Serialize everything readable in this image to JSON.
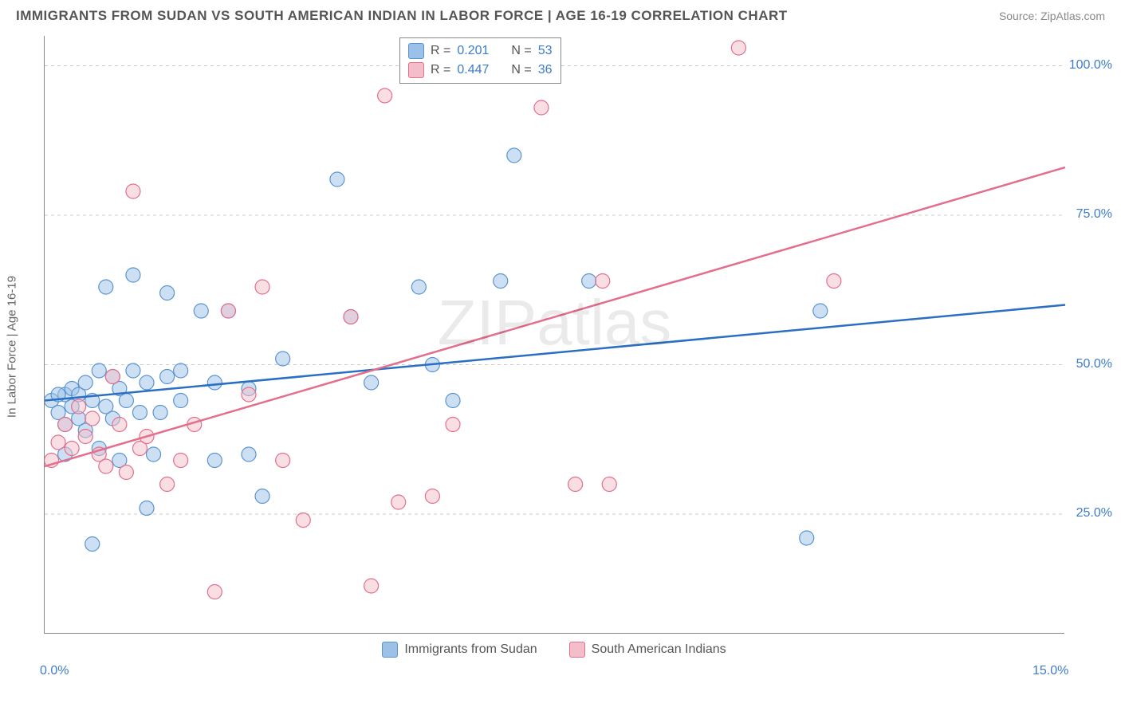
{
  "title": "IMMIGRANTS FROM SUDAN VS SOUTH AMERICAN INDIAN IN LABOR FORCE | AGE 16-19 CORRELATION CHART",
  "source": "Source: ZipAtlas.com",
  "watermark": "ZIPatlas",
  "y_axis_label": "In Labor Force | Age 16-19",
  "chart": {
    "type": "scatter",
    "background_color": "#ffffff",
    "grid_color": "#cccccc",
    "grid_dash": "4,4",
    "xlim": [
      0,
      15
    ],
    "ylim": [
      5,
      105
    ],
    "x_ticks": [
      0,
      5,
      10,
      15
    ],
    "x_tick_labels": [
      "0.0%",
      "",
      "",
      "15.0%"
    ],
    "y_ticks": [
      25,
      50,
      75,
      100
    ],
    "y_tick_labels": [
      "25.0%",
      "50.0%",
      "75.0%",
      "100.0%"
    ],
    "marker_radius": 9,
    "marker_opacity": 0.5,
    "series": [
      {
        "name": "Immigrants from Sudan",
        "color_fill": "#9bc1e8",
        "color_stroke": "#5a94d0",
        "R": "0.201",
        "N": "53",
        "trend": {
          "x1": 0,
          "y1": 44,
          "x2": 15,
          "y2": 60,
          "color": "#2b6fc2",
          "width": 2.5
        },
        "points": [
          [
            0.1,
            44
          ],
          [
            0.2,
            42
          ],
          [
            0.3,
            45
          ],
          [
            0.3,
            40
          ],
          [
            0.4,
            46
          ],
          [
            0.4,
            43
          ],
          [
            0.5,
            45
          ],
          [
            0.5,
            41
          ],
          [
            0.6,
            39
          ],
          [
            0.6,
            47
          ],
          [
            0.7,
            44
          ],
          [
            0.7,
            20
          ],
          [
            0.8,
            49
          ],
          [
            0.8,
            36
          ],
          [
            0.9,
            43
          ],
          [
            0.9,
            63
          ],
          [
            1.0,
            48
          ],
          [
            1.0,
            41
          ],
          [
            1.1,
            46
          ],
          [
            1.1,
            34
          ],
          [
            1.2,
            44
          ],
          [
            1.3,
            65
          ],
          [
            1.3,
            49
          ],
          [
            1.4,
            42
          ],
          [
            1.5,
            26
          ],
          [
            1.5,
            47
          ],
          [
            1.6,
            35
          ],
          [
            1.7,
            42
          ],
          [
            1.8,
            62
          ],
          [
            1.8,
            48
          ],
          [
            2.0,
            44
          ],
          [
            2.0,
            49
          ],
          [
            2.3,
            59
          ],
          [
            2.5,
            47
          ],
          [
            2.5,
            34
          ],
          [
            2.7,
            59
          ],
          [
            3.0,
            46
          ],
          [
            3.0,
            35
          ],
          [
            3.2,
            28
          ],
          [
            3.5,
            51
          ],
          [
            4.3,
            81
          ],
          [
            4.5,
            58
          ],
          [
            4.8,
            47
          ],
          [
            5.5,
            63
          ],
          [
            5.7,
            50
          ],
          [
            6.0,
            44
          ],
          [
            6.7,
            64
          ],
          [
            6.9,
            85
          ],
          [
            8.0,
            64
          ],
          [
            11.2,
            21
          ],
          [
            11.4,
            59
          ],
          [
            0.2,
            45
          ],
          [
            0.3,
            35
          ]
        ]
      },
      {
        "name": "South American Indians",
        "color_fill": "#f3bdc9",
        "color_stroke": "#e36f8c",
        "R": "0.447",
        "N": "36",
        "trend": {
          "x1": 0,
          "y1": 33,
          "x2": 15,
          "y2": 83,
          "color": "#e36f8c",
          "width": 2.5
        },
        "points": [
          [
            0.1,
            34
          ],
          [
            0.2,
            37
          ],
          [
            0.3,
            40
          ],
          [
            0.4,
            36
          ],
          [
            0.5,
            43
          ],
          [
            0.6,
            38
          ],
          [
            0.7,
            41
          ],
          [
            0.8,
            35
          ],
          [
            0.9,
            33
          ],
          [
            1.0,
            48
          ],
          [
            1.1,
            40
          ],
          [
            1.2,
            32
          ],
          [
            1.3,
            79
          ],
          [
            1.4,
            36
          ],
          [
            1.5,
            38
          ],
          [
            1.8,
            30
          ],
          [
            2.0,
            34
          ],
          [
            2.2,
            40
          ],
          [
            2.5,
            12
          ],
          [
            2.7,
            59
          ],
          [
            3.0,
            45
          ],
          [
            3.2,
            63
          ],
          [
            3.5,
            34
          ],
          [
            3.8,
            24
          ],
          [
            4.5,
            58
          ],
          [
            4.8,
            13
          ],
          [
            5.0,
            95
          ],
          [
            5.2,
            27
          ],
          [
            5.7,
            28
          ],
          [
            6.0,
            40
          ],
          [
            7.3,
            93
          ],
          [
            7.8,
            30
          ],
          [
            8.2,
            64
          ],
          [
            8.3,
            30
          ],
          [
            10.2,
            103
          ],
          [
            11.6,
            64
          ]
        ]
      }
    ]
  },
  "legend_top": [
    {
      "swatch_fill": "#9bc1e8",
      "swatch_stroke": "#5a94d0",
      "r_label": "R  =",
      "r_val": "0.201",
      "n_label": "N  =",
      "n_val": "53"
    },
    {
      "swatch_fill": "#f3bdc9",
      "swatch_stroke": "#e36f8c",
      "r_label": "R  =",
      "r_val": "0.447",
      "n_label": "N  =",
      "n_val": "36"
    }
  ],
  "legend_bottom": [
    {
      "swatch_fill": "#9bc1e8",
      "swatch_stroke": "#5a94d0",
      "label": "Immigrants from Sudan"
    },
    {
      "swatch_fill": "#f3bdc9",
      "swatch_stroke": "#e36f8c",
      "label": "South American Indians"
    }
  ]
}
